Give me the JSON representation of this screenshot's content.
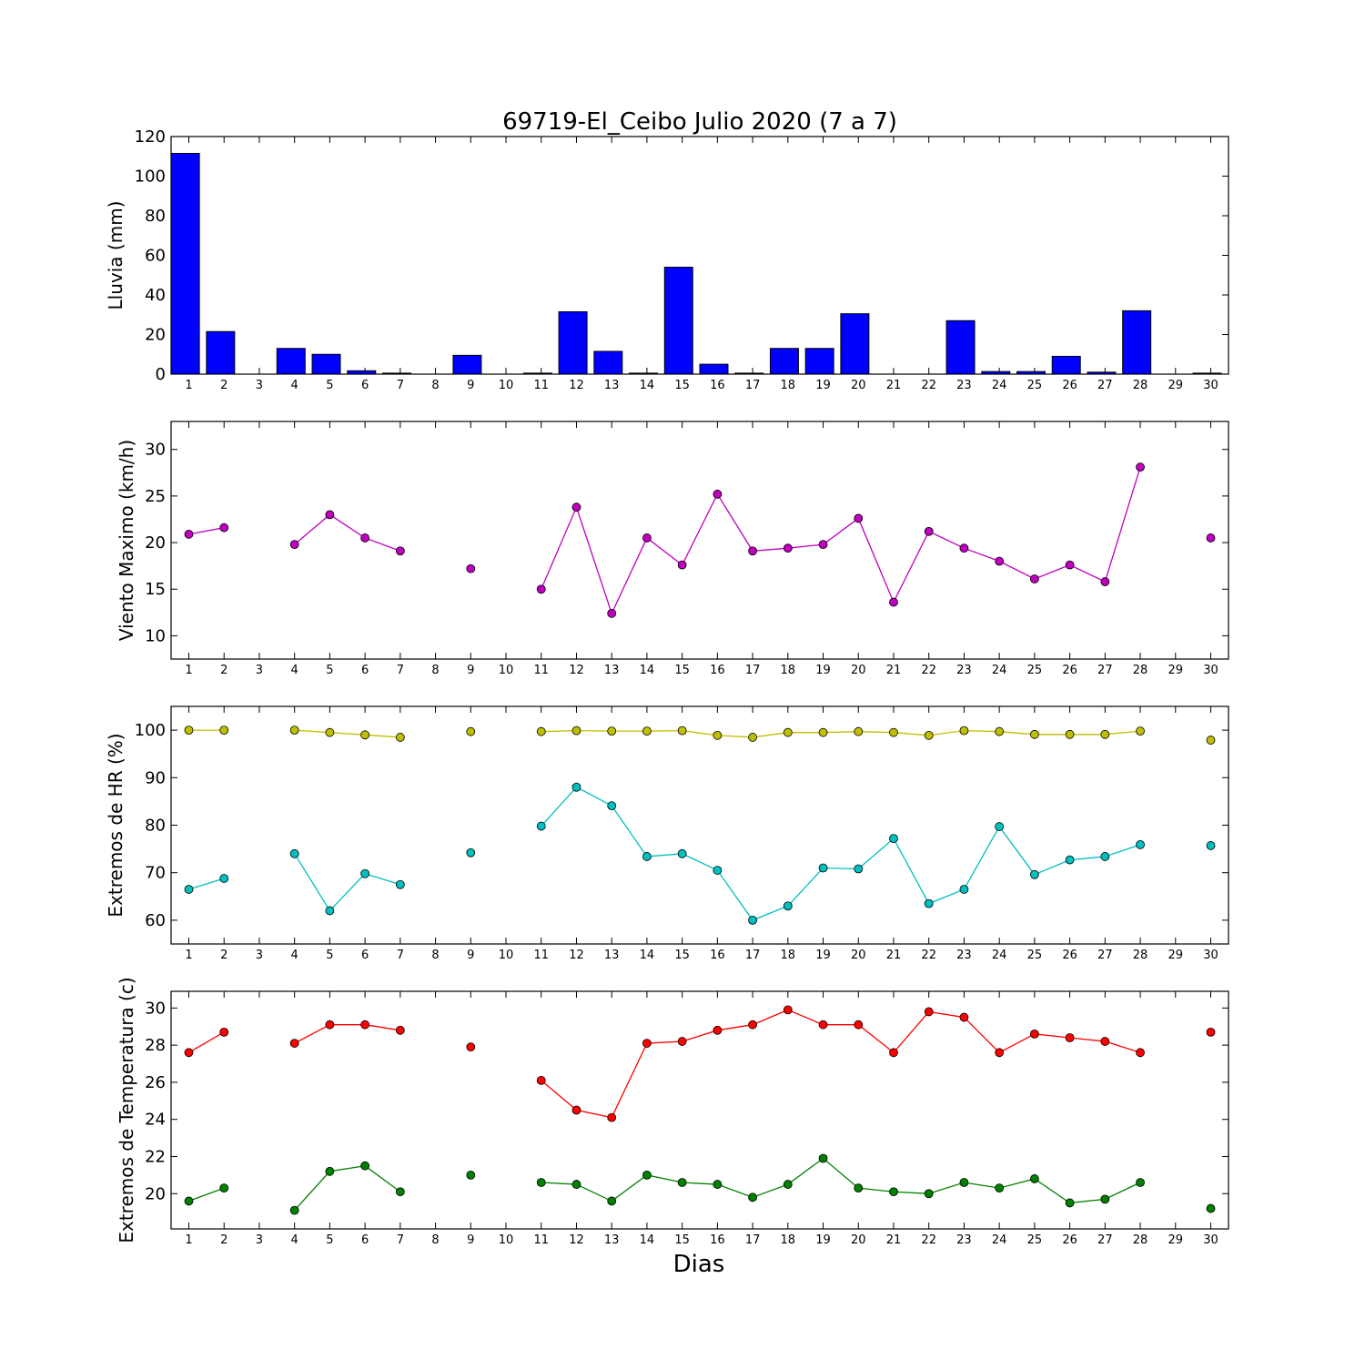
{
  "chart_data": [
    {
      "type": "bar",
      "title": "69719-El_Ceibo Julio 2020  (7 a 7)",
      "xlabel": "",
      "ylabel": "Lluvia (mm)",
      "ylim": [
        0,
        120
      ],
      "yticks": [
        0,
        20,
        40,
        60,
        80,
        100,
        120
      ],
      "x": [
        1,
        2,
        3,
        4,
        5,
        6,
        7,
        8,
        9,
        10,
        11,
        12,
        13,
        14,
        15,
        16,
        17,
        18,
        19,
        20,
        21,
        22,
        23,
        24,
        25,
        26,
        27,
        28,
        29,
        30
      ],
      "series": [
        {
          "color": "#0000ff",
          "values": [
            111.5,
            21.5,
            0,
            13,
            10,
            1.7,
            0.5,
            0,
            9.5,
            0,
            0.5,
            31.5,
            11.5,
            0.5,
            54,
            5,
            0.5,
            13,
            13,
            30.5,
            0,
            0,
            27,
            1.3,
            1.3,
            9,
            1,
            32,
            0,
            0.5
          ]
        }
      ]
    },
    {
      "type": "line",
      "xlabel": "",
      "ylabel": "Viento Maximo (km/h)",
      "ylim": [
        7.5,
        33
      ],
      "yticks": [
        10,
        15,
        20,
        25,
        30
      ],
      "x": [
        1,
        2,
        3,
        4,
        5,
        6,
        7,
        8,
        9,
        10,
        11,
        12,
        13,
        14,
        15,
        16,
        17,
        18,
        19,
        20,
        21,
        22,
        23,
        24,
        25,
        26,
        27,
        28,
        29,
        30
      ],
      "series": [
        {
          "color": "#bf00bf",
          "values": [
            20.9,
            21.6,
            null,
            19.8,
            23,
            20.5,
            19.1,
            null,
            17.2,
            null,
            15,
            23.8,
            12.4,
            20.5,
            17.6,
            25.2,
            19.1,
            19.4,
            19.8,
            22.6,
            13.6,
            21.2,
            19.4,
            18,
            16.1,
            17.6,
            15.8,
            28.1,
            null,
            20.5
          ]
        }
      ]
    },
    {
      "type": "line",
      "xlabel": "",
      "ylabel": "Extremos de HR (%)",
      "ylim": [
        55,
        105
      ],
      "yticks": [
        60,
        70,
        80,
        90,
        100
      ],
      "x": [
        1,
        2,
        3,
        4,
        5,
        6,
        7,
        8,
        9,
        10,
        11,
        12,
        13,
        14,
        15,
        16,
        17,
        18,
        19,
        20,
        21,
        22,
        23,
        24,
        25,
        26,
        27,
        28,
        29,
        30
      ],
      "series": [
        {
          "color": "#bfbf00",
          "values": [
            100,
            100,
            null,
            100,
            99.5,
            99,
            98.5,
            null,
            99.7,
            null,
            99.7,
            99.9,
            99.8,
            99.8,
            99.9,
            98.9,
            98.5,
            99.5,
            99.5,
            99.7,
            99.5,
            98.9,
            99.9,
            99.7,
            99.1,
            99.1,
            99.1,
            99.8,
            null,
            97.9
          ]
        },
        {
          "color": "#00bfbf",
          "values": [
            66.5,
            68.8,
            null,
            74,
            62,
            69.8,
            67.5,
            null,
            74.2,
            null,
            79.8,
            88,
            84.1,
            73.4,
            74,
            70.5,
            60,
            63,
            71,
            70.8,
            77.2,
            63.5,
            66.5,
            79.7,
            69.6,
            72.7,
            73.4,
            75.9,
            null,
            75.7
          ]
        }
      ]
    },
    {
      "type": "line",
      "xlabel": "Dias",
      "ylabel": "Extremos de Temperatura (c)",
      "ylim": [
        18.1,
        30.9
      ],
      "yticks": [
        20,
        22,
        24,
        26,
        28,
        30
      ],
      "x": [
        1,
        2,
        3,
        4,
        5,
        6,
        7,
        8,
        9,
        10,
        11,
        12,
        13,
        14,
        15,
        16,
        17,
        18,
        19,
        20,
        21,
        22,
        23,
        24,
        25,
        26,
        27,
        28,
        29,
        30
      ],
      "series": [
        {
          "color": "#ff0000",
          "values": [
            27.6,
            28.7,
            null,
            28.1,
            29.1,
            29.1,
            28.8,
            null,
            27.9,
            null,
            26.1,
            24.5,
            24.1,
            28.1,
            28.2,
            28.8,
            29.1,
            29.9,
            29.1,
            29.1,
            27.6,
            29.8,
            29.5,
            27.6,
            28.6,
            28.4,
            28.2,
            27.6,
            null,
            28.7
          ]
        },
        {
          "color": "#008000",
          "values": [
            19.6,
            20.3,
            null,
            19.1,
            21.2,
            21.5,
            20.1,
            null,
            21,
            null,
            20.6,
            20.5,
            19.6,
            21,
            20.6,
            20.5,
            19.8,
            20.5,
            21.9,
            20.3,
            20.1,
            20,
            20.6,
            20.3,
            20.8,
            19.5,
            19.7,
            20.6,
            null,
            19.2
          ]
        }
      ]
    }
  ]
}
